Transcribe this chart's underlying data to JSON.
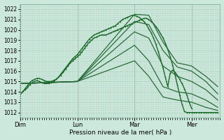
{
  "xlabel": "Pression niveau de la mer( hPa )",
  "background_color": "#cce8dc",
  "grid_color": "#aaccbb",
  "ylim": [
    1011.5,
    1022.5
  ],
  "yticks": [
    1012,
    1013,
    1014,
    1015,
    1016,
    1017,
    1018,
    1019,
    1020,
    1021,
    1022
  ],
  "days": [
    "Dim",
    "Lun",
    "Mar",
    "Mer"
  ],
  "day_positions": [
    0,
    24,
    48,
    72
  ],
  "total_hours": 84,
  "series": [
    {
      "x": [
        0,
        1,
        2,
        3,
        4,
        5,
        6,
        7,
        8,
        9,
        10,
        11,
        12,
        13,
        14,
        15,
        16,
        17,
        18,
        19,
        20,
        21,
        22,
        23,
        24,
        25,
        26,
        27,
        28,
        29,
        30,
        31,
        32,
        33,
        34,
        35,
        36,
        37,
        38,
        39,
        40,
        41,
        42,
        43,
        44,
        45,
        46,
        47,
        48,
        49,
        50,
        51,
        52,
        53,
        54,
        55,
        56,
        57,
        58,
        59,
        60,
        61,
        62,
        63,
        64,
        65,
        66,
        67,
        68,
        69,
        70,
        71,
        72,
        73,
        74,
        75,
        76,
        77,
        78,
        79,
        80,
        81,
        82,
        83
      ],
      "y": [
        1013.8,
        1014.0,
        1014.3,
        1014.6,
        1014.9,
        1015.1,
        1015.2,
        1015.3,
        1015.3,
        1015.2,
        1015.1,
        1015.0,
        1015.0,
        1015.0,
        1015.1,
        1015.2,
        1015.4,
        1015.6,
        1015.9,
        1016.2,
        1016.5,
        1016.8,
        1017.0,
        1017.2,
        1017.4,
        1017.6,
        1017.9,
        1018.2,
        1018.5,
        1018.8,
        1019.0,
        1019.2,
        1019.3,
        1019.4,
        1019.5,
        1019.5,
        1019.5,
        1019.6,
        1019.7,
        1019.8,
        1019.9,
        1020.0,
        1020.1,
        1020.2,
        1020.3,
        1020.4,
        1020.5,
        1020.6,
        1020.7,
        1020.8,
        1020.9,
        1021.0,
        1021.1,
        1021.1,
        1021.0,
        1020.8,
        1020.6,
        1020.3,
        1020.0,
        1019.6,
        1019.2,
        1018.7,
        1018.1,
        1017.4,
        1016.6,
        1015.7,
        1014.7,
        1013.7,
        1012.8,
        1012.1,
        1012.0,
        1012.0,
        1012.0,
        1012.0,
        1012.0,
        1012.0,
        1012.0,
        1012.0,
        1012.0,
        1012.0,
        1012.0,
        1012.0,
        1012.0,
        1012.0
      ],
      "color": "#1a6b2a",
      "lw": 1.0,
      "marker": "+"
    },
    {
      "x": [
        0,
        1,
        2,
        3,
        4,
        5,
        6,
        7,
        8,
        9,
        10,
        11,
        12,
        13,
        14,
        15,
        16,
        17,
        18,
        19,
        20,
        21,
        22,
        23,
        24,
        25,
        26,
        27,
        28,
        29,
        30,
        31,
        32,
        33,
        34,
        35,
        36,
        37,
        38,
        39,
        40,
        41,
        42,
        43,
        44,
        45,
        46,
        47,
        48,
        49,
        50,
        51,
        52,
        53,
        54,
        55,
        56,
        57,
        58,
        59,
        60,
        61,
        62,
        63,
        64,
        65,
        66,
        67,
        68,
        69,
        70,
        71,
        72
      ],
      "y": [
        1013.8,
        1014.0,
        1014.2,
        1014.4,
        1014.7,
        1014.9,
        1015.0,
        1015.1,
        1015.0,
        1014.9,
        1014.8,
        1014.8,
        1014.8,
        1014.9,
        1015.0,
        1015.2,
        1015.4,
        1015.7,
        1016.0,
        1016.3,
        1016.6,
        1016.9,
        1017.2,
        1017.4,
        1017.6,
        1017.9,
        1018.2,
        1018.5,
        1018.8,
        1019.1,
        1019.3,
        1019.5,
        1019.6,
        1019.7,
        1019.8,
        1019.9,
        1020.0,
        1020.1,
        1020.2,
        1020.3,
        1020.4,
        1020.6,
        1020.8,
        1021.0,
        1021.1,
        1021.2,
        1021.3,
        1021.4,
        1021.4,
        1021.3,
        1021.2,
        1021.0,
        1020.8,
        1020.5,
        1020.1,
        1019.7,
        1019.2,
        1018.6,
        1017.9,
        1017.1,
        1016.3,
        1015.4,
        1014.5,
        1015.8,
        1016.1,
        1015.9,
        1015.6,
        1015.2,
        1014.8,
        1014.3,
        1013.7,
        1013.0,
        1012.4
      ],
      "color": "#1a6b2a",
      "lw": 1.0,
      "marker": "+"
    },
    {
      "x": [
        0,
        24,
        48,
        54,
        60,
        66,
        72,
        78,
        83
      ],
      "y": [
        1014.8,
        1015.0,
        1021.5,
        1021.4,
        1018.8,
        1016.8,
        1016.5,
        1015.5,
        1014.5
      ],
      "color": "#2a6b3a",
      "lw": 0.9,
      "marker": null
    },
    {
      "x": [
        0,
        24,
        48,
        54,
        60,
        66,
        72,
        78,
        83
      ],
      "y": [
        1014.8,
        1015.0,
        1020.8,
        1020.5,
        1018.0,
        1016.4,
        1016.0,
        1015.0,
        1013.8
      ],
      "color": "#2a6b3a",
      "lw": 0.9,
      "marker": null
    },
    {
      "x": [
        0,
        24,
        48,
        54,
        60,
        66,
        72,
        78,
        83
      ],
      "y": [
        1014.8,
        1015.0,
        1019.8,
        1019.2,
        1016.5,
        1015.5,
        1015.0,
        1014.2,
        1013.2
      ],
      "color": "#2a6b3a",
      "lw": 0.9,
      "marker": null
    },
    {
      "x": [
        0,
        24,
        48,
        54,
        60,
        66,
        72,
        78,
        83
      ],
      "y": [
        1014.8,
        1015.0,
        1018.5,
        1017.0,
        1014.5,
        1014.0,
        1013.8,
        1013.2,
        1012.5
      ],
      "color": "#2a6b3a",
      "lw": 0.9,
      "marker": null
    },
    {
      "x": [
        0,
        24,
        48,
        54,
        60,
        66,
        72,
        78,
        83
      ],
      "y": [
        1014.8,
        1015.0,
        1017.0,
        1015.5,
        1013.5,
        1013.2,
        1013.0,
        1012.5,
        1012.2
      ],
      "color": "#2a6b3a",
      "lw": 0.9,
      "marker": null
    }
  ]
}
